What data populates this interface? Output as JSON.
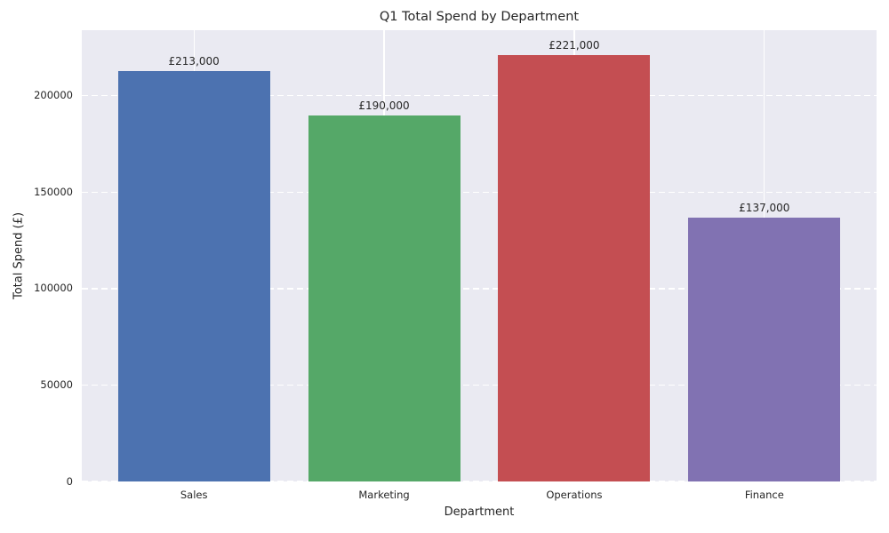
{
  "chart_data": {
    "type": "bar",
    "title": "Q1 Total Spend by Department",
    "xlabel": "Department",
    "ylabel": "Total Spend (£)",
    "categories": [
      "Sales",
      "Marketing",
      "Operations",
      "Finance"
    ],
    "values": [
      213000,
      190000,
      221000,
      137000
    ],
    "value_labels": [
      "£213,000",
      "£190,000",
      "£221,000",
      "£137,000"
    ],
    "bar_colors": [
      "#4C72B0",
      "#55A868",
      "#C44E52",
      "#8172B2"
    ],
    "yticks": [
      0,
      50000,
      100000,
      150000,
      200000
    ],
    "ytick_labels": [
      "0",
      "50000",
      "100000",
      "150000",
      "200000"
    ],
    "ylim": [
      0,
      234000
    ],
    "grid": true,
    "grid_style": {
      "horizontal": "dashed",
      "vertical": "solid",
      "color": "#FFFFFF"
    },
    "legend_position": "none",
    "plot_background": "#EAEAF2",
    "figure_background": "#FFFFFF",
    "text_color": "#262626"
  }
}
